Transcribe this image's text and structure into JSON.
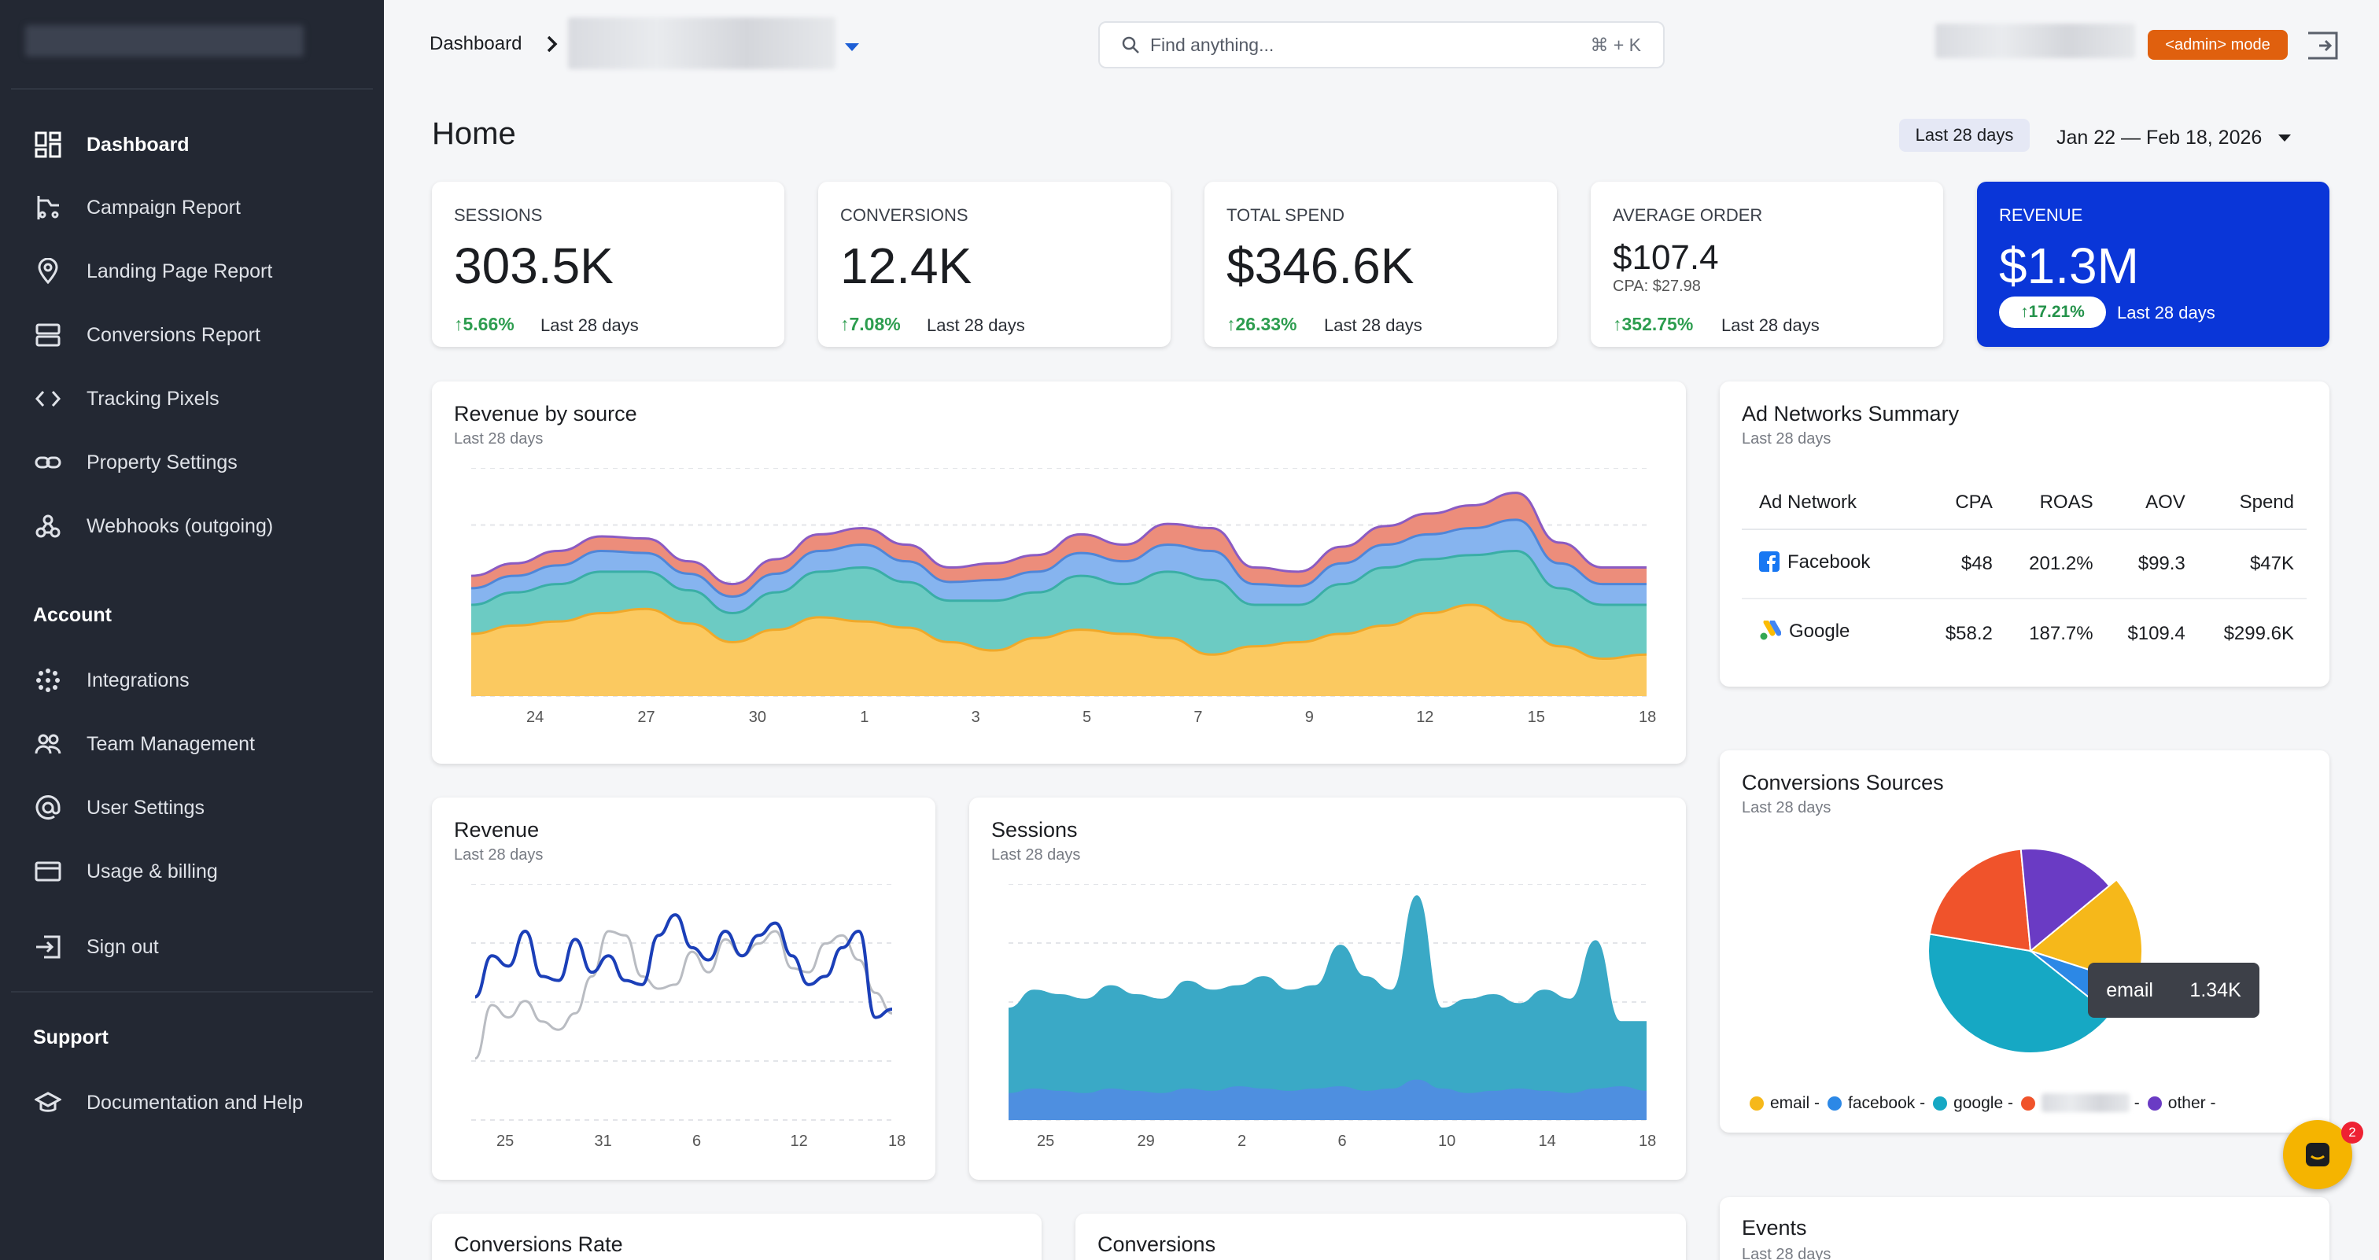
{
  "sidebar": {
    "nav": [
      {
        "label": "Dashboard",
        "icon": "dashboard-icon"
      },
      {
        "label": "Campaign Report",
        "icon": "campaign-icon"
      },
      {
        "label": "Landing Page Report",
        "icon": "location-pin-icon"
      },
      {
        "label": "Conversions Report",
        "icon": "storage-icon"
      },
      {
        "label": "Tracking Pixels",
        "icon": "code-icon"
      },
      {
        "label": "Property Settings",
        "icon": "link-icon"
      },
      {
        "label": "Webhooks (outgoing)",
        "icon": "webhook-icon"
      }
    ],
    "account_title": "Account",
    "account": [
      {
        "label": "Integrations",
        "icon": "integrations-icon"
      },
      {
        "label": "Team Management",
        "icon": "team-icon"
      },
      {
        "label": "User Settings",
        "icon": "at-icon"
      },
      {
        "label": "Usage & billing",
        "icon": "credit-card-icon"
      }
    ],
    "signout": "Sign out",
    "support_title": "Support",
    "support": [
      {
        "label": "Documentation and Help",
        "icon": "school-icon"
      }
    ]
  },
  "topbar": {
    "breadcrumb": "Dashboard",
    "search_placeholder": "Find anything...",
    "search_shortcut": "⌘ + K",
    "admin_badge": "<admin> mode"
  },
  "page": {
    "title": "Home",
    "range_chip": "Last 28 days",
    "range_dates": "Jan 22 — Feb 18, 2026"
  },
  "kpis": [
    {
      "label": "SESSIONS",
      "value": "303.5K",
      "delta": "5.66%",
      "period": "Last 28 days"
    },
    {
      "label": "CONVERSIONS",
      "value": "12.4K",
      "delta": "7.08%",
      "period": "Last 28 days"
    },
    {
      "label": "TOTAL SPEND",
      "value": "$346.6K",
      "delta": "26.33%",
      "period": "Last 28 days"
    },
    {
      "label": "AVERAGE ORDER",
      "value": "$107.4",
      "sub": "CPA: $27.98",
      "delta": "352.75%",
      "period": "Last 28 days"
    },
    {
      "label": "REVENUE",
      "value": "$1.3M",
      "delta": "17.21%",
      "period": "Last 28 days"
    }
  ],
  "colors": {
    "accent": "#0a36d8",
    "positive": "#2d9d4f",
    "admin": "#e0600e",
    "sidebar": "#232833"
  },
  "revenue_by_source": {
    "title": "Revenue by source",
    "subtitle": "Last 28 days",
    "ticks": [
      "24",
      "27",
      "30",
      "1",
      "3",
      "5",
      "7",
      "9",
      "12",
      "15",
      "18"
    ]
  },
  "ad_networks": {
    "title": "Ad Networks Summary",
    "subtitle": "Last 28 days",
    "headers": [
      "Ad Network",
      "CPA",
      "ROAS",
      "AOV",
      "Spend"
    ],
    "rows": [
      {
        "name": "Facebook",
        "icon": "facebook-icon",
        "cpa": "$48",
        "roas": "201.2%",
        "aov": "$99.3",
        "spend": "$47K"
      },
      {
        "name": "Google",
        "icon": "google-ads-icon",
        "cpa": "$58.2",
        "roas": "187.7%",
        "aov": "$109.4",
        "spend": "$299.6K"
      }
    ]
  },
  "revenue_chart": {
    "title": "Revenue",
    "subtitle": "Last 28 days",
    "ticks": [
      "25",
      "31",
      "6",
      "12",
      "18"
    ]
  },
  "sessions_chart": {
    "title": "Sessions",
    "subtitle": "Last 28 days",
    "ticks": [
      "25",
      "29",
      "2",
      "6",
      "10",
      "14",
      "18"
    ]
  },
  "conversions_sources": {
    "title": "Conversions Sources",
    "subtitle": "Last 28 days",
    "legend": [
      {
        "label": "email -",
        "color": "#f6b81a"
      },
      {
        "label": "facebook -",
        "color": "#2c88e6"
      },
      {
        "label": "google -",
        "color": "#16a8c4"
      },
      {
        "label": "",
        "color": "#f0532b"
      },
      {
        "label": "other -",
        "color": "#6a3bc4"
      }
    ],
    "tooltip_label": "email",
    "tooltip_value": "1.34K"
  },
  "bottom": {
    "conv_rate": "Conversions Rate",
    "conversions": "Conversions",
    "events": "Events",
    "events_sub": "Last 28 days"
  },
  "chat_badge": "2",
  "chart_data": [
    {
      "type": "area",
      "title": "Revenue by source",
      "x": [
        "22",
        "23",
        "24",
        "25",
        "26",
        "27",
        "28",
        "29",
        "30",
        "31",
        "1",
        "2",
        "3",
        "4",
        "5",
        "6",
        "7",
        "8",
        "9",
        "10",
        "11",
        "12",
        "13",
        "14",
        "15",
        "16",
        "17",
        "18"
      ],
      "series": [
        {
          "values": [
            30,
            34,
            36,
            40,
            42,
            35,
            26,
            32,
            38,
            36,
            33,
            26,
            22,
            28,
            32,
            30,
            28,
            20,
            24,
            26,
            30,
            34,
            40,
            44,
            36,
            24,
            18,
            20
          ]
        },
        {
          "values": [
            14,
            16,
            18,
            20,
            18,
            16,
            14,
            18,
            22,
            26,
            22,
            20,
            24,
            22,
            26,
            24,
            32,
            36,
            20,
            18,
            24,
            28,
            26,
            24,
            34,
            28,
            26,
            24
          ]
        },
        {
          "values": [
            8,
            8,
            9,
            10,
            9,
            8,
            8,
            9,
            10,
            11,
            10,
            9,
            10,
            10,
            11,
            11,
            13,
            14,
            10,
            9,
            10,
            11,
            12,
            13,
            15,
            12,
            10,
            10
          ]
        },
        {
          "values": [
            6,
            6,
            7,
            7,
            7,
            6,
            6,
            7,
            8,
            8,
            8,
            7,
            8,
            8,
            9,
            8,
            10,
            11,
            8,
            7,
            8,
            9,
            10,
            11,
            13,
            10,
            8,
            8
          ]
        }
      ]
    },
    {
      "type": "line",
      "title": "Revenue",
      "x": [
        "24",
        "25",
        "26",
        "27",
        "28",
        "29",
        "30",
        "31",
        "1",
        "2",
        "3",
        "4",
        "5",
        "6",
        "7",
        "8",
        "9",
        "10",
        "11",
        "12",
        "13",
        "14",
        "15",
        "16",
        "17",
        "18"
      ],
      "series": [
        {
          "values": [
            60,
            80,
            75,
            92,
            70,
            68,
            88,
            72,
            80,
            68,
            66,
            90,
            100,
            84,
            78,
            92,
            80,
            90,
            96,
            80,
            66,
            70,
            84,
            92,
            50,
            54
          ]
        },
        {
          "values": [
            30,
            56,
            50,
            58,
            48,
            44,
            52,
            70,
            92,
            90,
            70,
            64,
            66,
            82,
            72,
            88,
            80,
            86,
            92,
            74,
            72,
            86,
            90,
            78,
            62,
            52
          ]
        }
      ]
    },
    {
      "type": "area",
      "title": "Sessions",
      "x": [
        "24",
        "25",
        "26",
        "27",
        "28",
        "29",
        "30",
        "31",
        "1",
        "2",
        "3",
        "4",
        "5",
        "6",
        "7",
        "8",
        "9",
        "10",
        "11",
        "12",
        "13",
        "14",
        "15",
        "16",
        "17",
        "18"
      ],
      "series": [
        {
          "values": [
            12,
            14,
            13,
            12,
            14,
            13,
            12,
            14,
            13,
            15,
            14,
            13,
            14,
            15,
            13,
            14,
            18,
            14,
            12,
            13,
            14,
            13,
            12,
            14,
            15,
            13
          ]
        },
        {
          "values": [
            50,
            58,
            56,
            54,
            60,
            56,
            54,
            62,
            58,
            60,
            64,
            58,
            60,
            78,
            64,
            58,
            100,
            50,
            54,
            56,
            52,
            58,
            54,
            80,
            44,
            44
          ]
        }
      ]
    },
    {
      "type": "pie",
      "title": "Conversions Sources",
      "categories": [
        "email",
        "facebook",
        "google",
        "",
        "other"
      ],
      "values": [
        1340,
        480,
        3520,
        1750,
        1300
      ]
    }
  ]
}
